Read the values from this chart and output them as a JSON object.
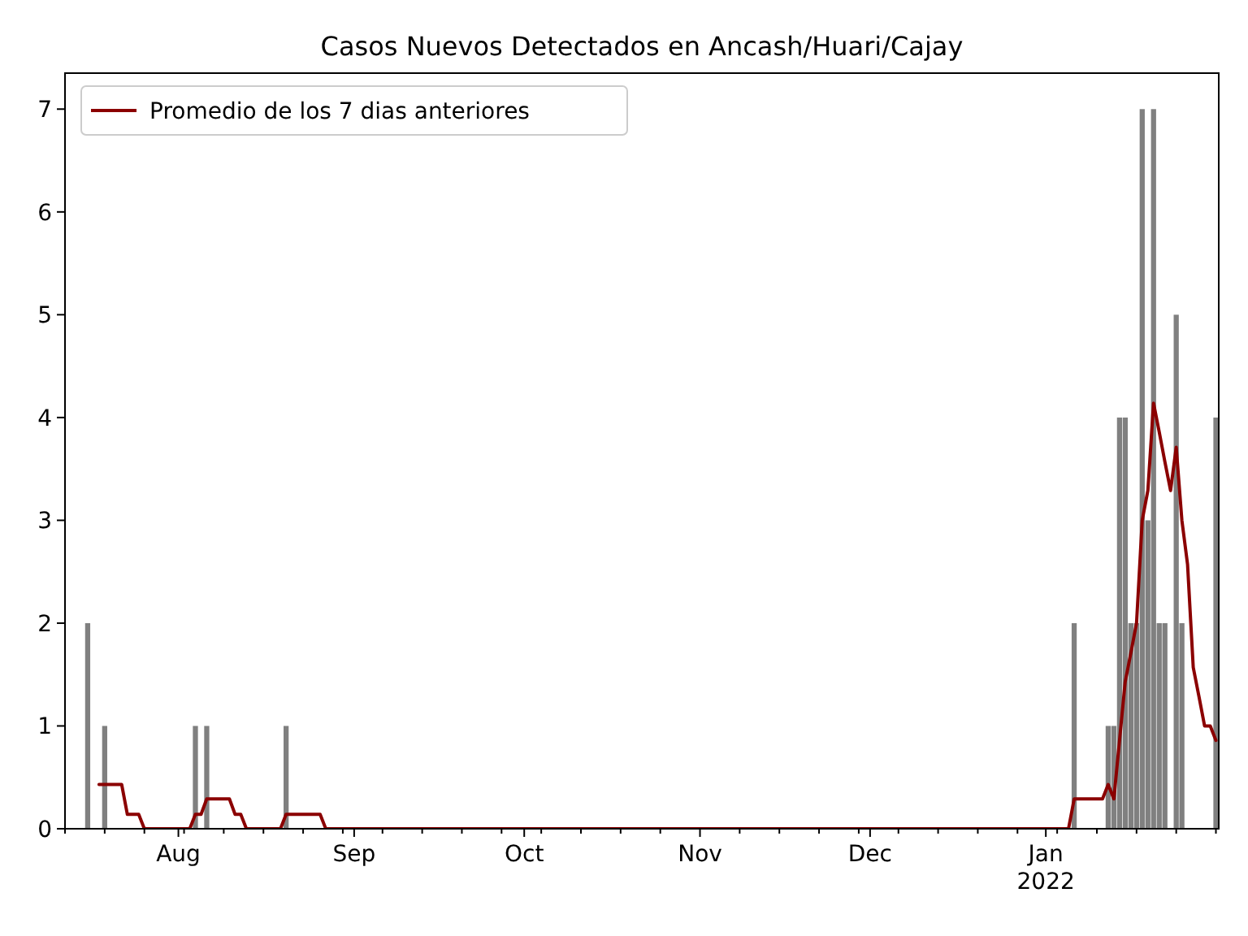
{
  "chart_data": {
    "type": "bar",
    "title": "Casos Nuevos Detectados en Ancash/Huari/Cajay",
    "xlim": [
      "2021-07-12",
      "2022-01-31T12:00"
    ],
    "xticks": [
      {
        "value": "2021-08-01",
        "label": "Aug"
      },
      {
        "value": "2021-09-01",
        "label": "Sep"
      },
      {
        "value": "2021-10-01",
        "label": "Oct"
      },
      {
        "value": "2021-11-01",
        "label": "Nov"
      },
      {
        "value": "2021-12-01",
        "label": "Dec"
      },
      {
        "value": "2022-01-01",
        "label": "Jan\n2022"
      },
      {
        "value": "2021-07-12",
        "label": null
      },
      {
        "value": "2021-07-19",
        "label": null
      },
      {
        "value": "2021-07-26",
        "label": null
      },
      {
        "value": "2021-08-02",
        "label": null
      },
      {
        "value": "2021-08-09",
        "label": null
      },
      {
        "value": "2021-08-16",
        "label": null
      },
      {
        "value": "2021-08-23",
        "label": null
      },
      {
        "value": "2021-08-30",
        "label": null
      },
      {
        "value": "2021-09-06",
        "label": null
      },
      {
        "value": "2021-09-13",
        "label": null
      },
      {
        "value": "2021-09-20",
        "label": null
      },
      {
        "value": "2021-09-27",
        "label": null
      },
      {
        "value": "2021-10-04",
        "label": null
      },
      {
        "value": "2021-10-11",
        "label": null
      },
      {
        "value": "2021-10-18",
        "label": null
      },
      {
        "value": "2021-10-25",
        "label": null
      },
      {
        "value": "2021-11-08",
        "label": null
      },
      {
        "value": "2021-11-15",
        "label": null
      },
      {
        "value": "2021-11-22",
        "label": null
      },
      {
        "value": "2021-11-29",
        "label": null
      },
      {
        "value": "2021-12-06",
        "label": null
      },
      {
        "value": "2021-12-13",
        "label": null
      },
      {
        "value": "2021-12-20",
        "label": null
      },
      {
        "value": "2021-12-27",
        "label": null
      },
      {
        "value": "2022-01-03",
        "label": null
      },
      {
        "value": "2022-01-10",
        "label": null
      },
      {
        "value": "2022-01-17",
        "label": null
      },
      {
        "value": "2022-01-24",
        "label": null
      },
      {
        "value": "2022-01-31",
        "label": null
      }
    ],
    "ylim": [
      0,
      7.35
    ],
    "yticks": [
      0,
      1,
      2,
      3,
      4,
      5,
      6,
      7
    ],
    "grid": false,
    "legend": "top left",
    "series": [
      {
        "color": "#808080",
        "x": [
          "2021-07-16",
          "2021-07-19",
          "2021-08-04",
          "2021-08-06",
          "2021-08-20",
          "2022-01-06",
          "2022-01-12",
          "2022-01-13",
          "2022-01-14",
          "2022-01-15",
          "2022-01-16",
          "2022-01-17",
          "2022-01-18",
          "2022-01-19",
          "2022-01-20",
          "2022-01-21",
          "2022-01-22",
          "2022-01-24",
          "2022-01-25",
          "2022-01-31"
        ],
        "values": [
          2,
          1,
          1,
          1,
          1,
          2,
          1,
          1,
          4,
          4,
          2,
          2,
          7,
          3,
          7,
          2,
          2,
          5,
          2,
          4
        ]
      },
      {
        "type": "line",
        "name": "Promedio de los 7 dias anteriores",
        "color": "#8b0000",
        "x": [
          "2021-07-18",
          "2021-07-22",
          "2021-07-23",
          "2021-07-25",
          "2021-07-26",
          "2021-08-03",
          "2021-08-04",
          "2021-08-05",
          "2021-08-06",
          "2021-08-10",
          "2021-08-11",
          "2021-08-12",
          "2021-08-13",
          "2021-08-19",
          "2021-08-20",
          "2021-08-26",
          "2021-08-27",
          "2022-01-05",
          "2022-01-06",
          "2022-01-11",
          "2022-01-12",
          "2022-01-13",
          "2022-01-14",
          "2022-01-15",
          "2022-01-16",
          "2022-01-17",
          "2022-01-18",
          "2022-01-19",
          "2022-01-20",
          "2022-01-21",
          "2022-01-22",
          "2022-01-23",
          "2022-01-24",
          "2022-01-25",
          "2022-01-26",
          "2022-01-27",
          "2022-01-28",
          "2022-01-29",
          "2022-01-30",
          "2022-01-31"
        ],
        "values": [
          0.43,
          0.43,
          0.14,
          0.14,
          0,
          0,
          0.14,
          0.14,
          0.29,
          0.29,
          0.14,
          0.14,
          0,
          0,
          0.14,
          0.14,
          0,
          0,
          0.29,
          0.29,
          0.43,
          0.29,
          0.86,
          1.43,
          1.71,
          2,
          3,
          3.29,
          4.14,
          3.86,
          3.57,
          3.29,
          3.71,
          3,
          2.57,
          1.57,
          1.29,
          1,
          1,
          0.86
        ]
      }
    ]
  }
}
